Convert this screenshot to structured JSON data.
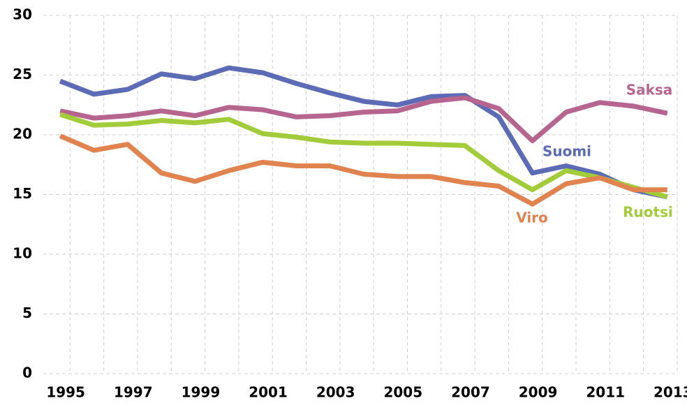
{
  "chart_data": {
    "type": "line",
    "categories": [
      "1995",
      null,
      "1997",
      null,
      "1999",
      null,
      "2001",
      null,
      "2003",
      null,
      "2005",
      null,
      "2007",
      null,
      "2009",
      null,
      "2011",
      null,
      "2013"
    ],
    "series": [
      {
        "name": "Suomi",
        "color": "#5b6bb5",
        "values": [
          24.5,
          23.4,
          23.8,
          25.1,
          24.7,
          25.6,
          25.2,
          24.3,
          23.5,
          22.8,
          22.5,
          23.2,
          23.3,
          21.5,
          16.8,
          17.4,
          16.7,
          15.4,
          14.8
        ]
      },
      {
        "name": "Saksa",
        "color": "#b5658e",
        "values": [
          22.0,
          21.4,
          21.6,
          22.0,
          21.6,
          22.3,
          22.1,
          21.5,
          21.6,
          21.9,
          22.0,
          22.8,
          23.1,
          22.2,
          19.5,
          21.9,
          22.7,
          22.4,
          21.8
        ]
      },
      {
        "name": "Ruotsi",
        "color": "#a3cc3a",
        "values": [
          21.7,
          20.8,
          20.9,
          21.2,
          21.0,
          21.3,
          20.1,
          19.8,
          19.4,
          19.3,
          19.3,
          19.2,
          19.1,
          17.0,
          15.4,
          17.0,
          16.4,
          15.6,
          14.8
        ]
      },
      {
        "name": "Viro",
        "color": "#e0834f",
        "values": [
          19.9,
          18.7,
          19.2,
          16.8,
          16.1,
          17.0,
          17.7,
          17.4,
          17.4,
          16.7,
          16.5,
          16.5,
          16.0,
          15.7,
          14.2,
          15.9,
          16.4,
          15.4,
          15.4
        ]
      }
    ],
    "ylim": [
      0,
      30
    ],
    "yticks": [
      0,
      5,
      10,
      15,
      20,
      25,
      30
    ],
    "grid": true
  }
}
